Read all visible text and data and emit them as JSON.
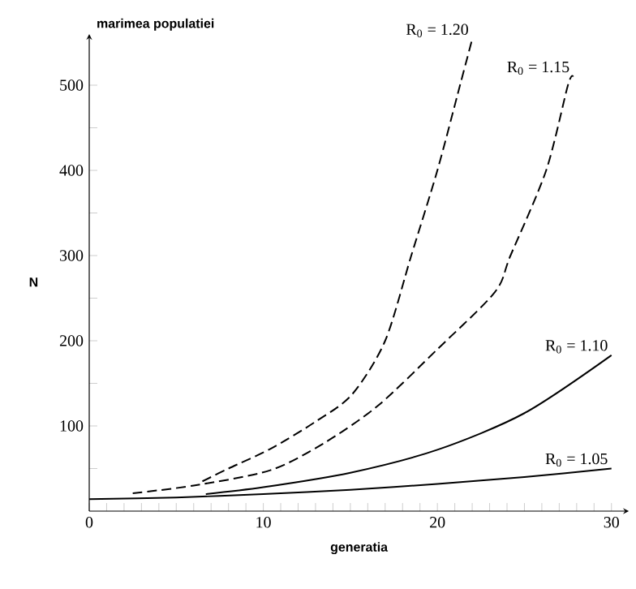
{
  "chart_data": {
    "type": "line",
    "xlabel": "generatia",
    "ylabel": "N",
    "annotations": [
      "marimea populatiei"
    ],
    "xlim": [
      0,
      31
    ],
    "ylim": [
      0,
      560
    ],
    "xticks": [
      0,
      {
        "value": 1,
        "label": null
      },
      {
        "value": 2,
        "label": null
      },
      {
        "value": 3,
        "label": null
      },
      {
        "value": 4,
        "label": null
      },
      {
        "value": 5,
        "label": null
      },
      {
        "value": 6,
        "label": null
      },
      {
        "value": 7,
        "label": null
      },
      {
        "value": 8,
        "label": null
      },
      {
        "value": 9,
        "label": null
      },
      10,
      {
        "value": 11,
        "label": null
      },
      {
        "value": 12,
        "label": null
      },
      {
        "value": 13,
        "label": null
      },
      {
        "value": 14,
        "label": null
      },
      {
        "value": 15,
        "label": null
      },
      {
        "value": 16,
        "label": null
      },
      {
        "value": 17,
        "label": null
      },
      {
        "value": 18,
        "label": null
      },
      {
        "value": 19,
        "label": null
      },
      20,
      {
        "value": 21,
        "label": null
      },
      {
        "value": 22,
        "label": null
      },
      {
        "value": 23,
        "label": null
      },
      {
        "value": 24,
        "label": null
      },
      {
        "value": 25,
        "label": null
      },
      {
        "value": 26,
        "label": null
      },
      {
        "value": 27,
        "label": null
      },
      {
        "value": 28,
        "label": null
      },
      {
        "value": 29,
        "label": null
      },
      30
    ],
    "yticks": [
      {
        "value": 50,
        "label": null
      },
      100,
      {
        "value": 150,
        "label": null
      },
      200,
      {
        "value": 250,
        "label": null
      },
      300,
      {
        "value": 350,
        "label": null
      },
      400,
      {
        "value": 450,
        "label": null
      },
      500
    ],
    "grid": false,
    "marker": "none",
    "series": [
      {
        "name": "R$_{0}$ = 1.20",
        "color": "#000000",
        "line_style": "dashed",
        "x": [
          6.5,
          8,
          10.4,
          13,
          15.1,
          17,
          18.5,
          20,
          21.3,
          22
        ],
        "values": [
          35,
          50,
          73,
          105,
          137,
          200,
          300,
          400,
          500,
          554
        ]
      },
      {
        "name": "R$_{0}$ = 1.15",
        "color": "#000000",
        "line_style": "dashed",
        "x": [
          2.5,
          6,
          10.4,
          13.5,
          16.6,
          20,
          23.3,
          24.2,
          26.25,
          27.5,
          27.8
        ],
        "values": [
          21,
          30,
          48,
          80,
          124,
          190,
          257,
          300,
          400,
          500,
          510
        ]
      },
      {
        "name": "R$_{0}$ = 1.10",
        "color": "#000000",
        "line_style": "solid",
        "x": [
          6.7,
          10,
          15,
          20,
          25,
          30
        ],
        "values": [
          20,
          28,
          45,
          72,
          115,
          183
        ]
      },
      {
        "name": "R$_{0}$ = 1.05",
        "color": "#000000",
        "line_style": "solid",
        "x": [
          0,
          5,
          10,
          15,
          20,
          25,
          30
        ],
        "values": [
          14,
          16,
          20,
          25,
          32,
          40,
          50
        ]
      }
    ]
  }
}
